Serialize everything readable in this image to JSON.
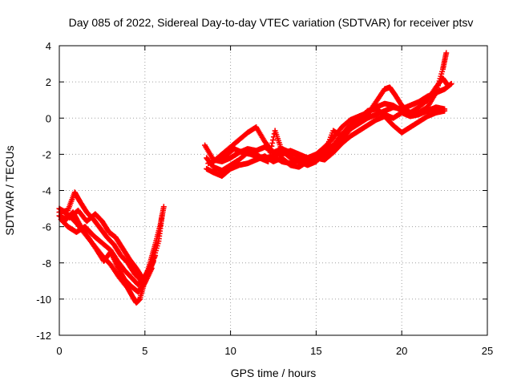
{
  "chart_data": {
    "type": "scatter",
    "title": "Day 085 of 2022, Sidereal Day-to-day VTEC variation (SDTVAR) for receiver ptsv",
    "xlabel": "GPS time / hours",
    "ylabel": "SDTVAR / TECUs",
    "xlim": [
      0,
      25
    ],
    "ylim": [
      -12,
      4
    ],
    "xticks": [
      0,
      5,
      10,
      15,
      20,
      25
    ],
    "yticks": [
      -12,
      -10,
      -8,
      -6,
      -4,
      -2,
      0,
      2,
      4
    ],
    "grid": true,
    "marker": "+",
    "color": "#ff0000",
    "series": [
      {
        "name": "trace-1",
        "points": [
          [
            0.0,
            -5.0
          ],
          [
            0.5,
            -5.3
          ],
          [
            1.0,
            -5.8
          ],
          [
            1.5,
            -6.4
          ],
          [
            2.0,
            -7.0
          ],
          [
            2.5,
            -7.6
          ],
          [
            3.0,
            -8.1
          ],
          [
            3.5,
            -8.8
          ],
          [
            4.0,
            -9.4
          ],
          [
            4.3,
            -9.9
          ],
          [
            4.5,
            -10.2
          ],
          [
            4.7,
            -10.0
          ],
          [
            5.0,
            -9.0
          ],
          [
            5.3,
            -8.0
          ],
          [
            5.6,
            -7.0
          ],
          [
            5.9,
            -5.9
          ],
          [
            6.1,
            -4.9
          ]
        ]
      },
      {
        "name": "trace-2",
        "points": [
          [
            0.0,
            -5.4
          ],
          [
            0.4,
            -5.6
          ],
          [
            0.8,
            -5.2
          ],
          [
            1.2,
            -5.9
          ],
          [
            1.7,
            -6.6
          ],
          [
            2.2,
            -7.3
          ],
          [
            2.6,
            -7.9
          ],
          [
            3.0,
            -7.4
          ],
          [
            3.4,
            -8.2
          ],
          [
            3.8,
            -8.9
          ],
          [
            4.2,
            -9.3
          ],
          [
            4.6,
            -9.6
          ],
          [
            5.0,
            -9.1
          ],
          [
            5.4,
            -8.3
          ]
        ]
      },
      {
        "name": "trace-3",
        "points": [
          [
            0.0,
            -5.2
          ],
          [
            0.5,
            -5.1
          ],
          [
            0.9,
            -4.1
          ],
          [
            1.2,
            -4.6
          ],
          [
            1.6,
            -5.2
          ],
          [
            2.0,
            -5.6
          ],
          [
            2.4,
            -6.1
          ],
          [
            2.8,
            -6.6
          ],
          [
            3.2,
            -7.0
          ],
          [
            3.6,
            -7.6
          ],
          [
            4.0,
            -8.0
          ],
          [
            4.4,
            -8.6
          ],
          [
            4.8,
            -9.0
          ],
          [
            5.2,
            -8.6
          ],
          [
            5.5,
            -7.9
          ]
        ]
      },
      {
        "name": "trace-4",
        "points": [
          [
            0.1,
            -5.6
          ],
          [
            0.5,
            -6.0
          ],
          [
            1.0,
            -6.3
          ],
          [
            1.5,
            -6.0
          ],
          [
            2.0,
            -6.5
          ],
          [
            2.5,
            -6.9
          ],
          [
            3.0,
            -7.3
          ],
          [
            3.4,
            -7.9
          ],
          [
            3.8,
            -8.4
          ],
          [
            4.2,
            -8.8
          ],
          [
            4.6,
            -9.2
          ],
          [
            5.0,
            -8.8
          ],
          [
            5.4,
            -8.1
          ],
          [
            5.8,
            -6.8
          ],
          [
            6.0,
            -5.4
          ]
        ]
      },
      {
        "name": "trace-5",
        "points": [
          [
            0.2,
            -5.1
          ],
          [
            0.6,
            -5.5
          ],
          [
            1.1,
            -5.1
          ],
          [
            1.6,
            -5.7
          ],
          [
            2.1,
            -5.3
          ],
          [
            2.5,
            -5.7
          ],
          [
            2.9,
            -6.3
          ],
          [
            3.3,
            -6.6
          ],
          [
            3.7,
            -7.2
          ],
          [
            4.1,
            -7.8
          ],
          [
            4.5,
            -8.3
          ],
          [
            4.9,
            -8.9
          ],
          [
            5.2,
            -8.4
          ],
          [
            5.6,
            -7.6
          ]
        ]
      },
      {
        "name": "trace-6",
        "points": [
          [
            8.5,
            -1.5
          ],
          [
            9.0,
            -2.3
          ],
          [
            9.5,
            -2.4
          ],
          [
            10.0,
            -2.2
          ],
          [
            10.5,
            -1.9
          ],
          [
            11.0,
            -1.7
          ],
          [
            11.5,
            -1.8
          ],
          [
            12.0,
            -1.6
          ],
          [
            12.5,
            -1.9
          ],
          [
            13.0,
            -1.7
          ],
          [
            13.5,
            -1.9
          ],
          [
            14.0,
            -2.1
          ],
          [
            14.5,
            -2.2
          ],
          [
            15.0,
            -2.0
          ],
          [
            15.5,
            -1.6
          ],
          [
            16.0,
            -1.1
          ],
          [
            16.5,
            -0.5
          ],
          [
            17.0,
            -0.1
          ],
          [
            17.5,
            0.1
          ],
          [
            18.0,
            0.3
          ],
          [
            18.5,
            0.6
          ],
          [
            19.0,
            0.8
          ],
          [
            19.5,
            0.7
          ],
          [
            20.0,
            0.4
          ],
          [
            20.5,
            0.2
          ],
          [
            21.0,
            0.3
          ],
          [
            21.5,
            0.6
          ],
          [
            22.0,
            1.4
          ],
          [
            22.4,
            2.7
          ],
          [
            22.6,
            3.6
          ]
        ]
      },
      {
        "name": "trace-7",
        "points": [
          [
            8.6,
            -2.2
          ],
          [
            9.0,
            -2.7
          ],
          [
            9.5,
            -2.9
          ],
          [
            10.0,
            -2.6
          ],
          [
            10.5,
            -2.3
          ],
          [
            11.0,
            -1.9
          ],
          [
            11.5,
            -2.0
          ],
          [
            12.0,
            -2.3
          ],
          [
            12.5,
            -2.1
          ],
          [
            13.0,
            -2.4
          ],
          [
            13.5,
            -2.5
          ],
          [
            14.0,
            -2.3
          ],
          [
            14.5,
            -2.5
          ],
          [
            15.0,
            -2.3
          ],
          [
            15.5,
            -2.0
          ],
          [
            16.0,
            -1.7
          ],
          [
            16.5,
            -1.2
          ],
          [
            17.0,
            -0.6
          ],
          [
            17.5,
            -0.3
          ],
          [
            18.0,
            0.0
          ],
          [
            18.5,
            0.2
          ],
          [
            19.0,
            0.4
          ],
          [
            19.5,
            0.6
          ],
          [
            20.0,
            0.5
          ],
          [
            20.5,
            0.7
          ],
          [
            21.0,
            0.9
          ],
          [
            21.5,
            1.2
          ],
          [
            22.0,
            1.4
          ],
          [
            22.5,
            1.6
          ],
          [
            22.9,
            1.9
          ]
        ]
      },
      {
        "name": "trace-8",
        "points": [
          [
            8.6,
            -2.8
          ],
          [
            9.0,
            -3.0
          ],
          [
            9.5,
            -3.2
          ],
          [
            10.0,
            -2.8
          ],
          [
            10.5,
            -2.6
          ],
          [
            11.0,
            -2.5
          ],
          [
            11.5,
            -2.3
          ],
          [
            12.0,
            -2.1
          ],
          [
            12.5,
            -2.4
          ],
          [
            13.0,
            -2.2
          ],
          [
            13.5,
            -2.6
          ],
          [
            14.0,
            -2.7
          ],
          [
            14.5,
            -2.4
          ],
          [
            15.0,
            -2.2
          ],
          [
            15.5,
            -2.3
          ],
          [
            16.0,
            -1.9
          ],
          [
            16.5,
            -1.4
          ],
          [
            17.0,
            -1.0
          ],
          [
            17.5,
            -0.7
          ],
          [
            18.0,
            -0.4
          ],
          [
            18.5,
            -0.1
          ],
          [
            19.0,
            0.1
          ],
          [
            19.5,
            -0.4
          ],
          [
            20.0,
            -0.8
          ],
          [
            20.5,
            -0.5
          ],
          [
            21.0,
            -0.2
          ],
          [
            21.5,
            0.1
          ],
          [
            22.0,
            0.3
          ],
          [
            22.5,
            0.4
          ]
        ]
      },
      {
        "name": "trace-9",
        "points": [
          [
            9.0,
            -2.4
          ],
          [
            9.5,
            -2.0
          ],
          [
            10.0,
            -1.6
          ],
          [
            10.5,
            -1.2
          ],
          [
            11.0,
            -0.8
          ],
          [
            11.5,
            -0.5
          ],
          [
            12.0,
            -1.3
          ],
          [
            12.5,
            -1.9
          ],
          [
            13.0,
            -2.0
          ],
          [
            13.5,
            -1.8
          ],
          [
            14.0,
            -2.0
          ],
          [
            14.5,
            -2.2
          ],
          [
            15.0,
            -2.1
          ],
          [
            15.5,
            -1.8
          ],
          [
            16.0,
            -1.5
          ],
          [
            16.5,
            -0.9
          ],
          [
            17.0,
            -0.4
          ],
          [
            17.5,
            -0.2
          ],
          [
            18.0,
            0.2
          ],
          [
            18.5,
            0.9
          ],
          [
            19.0,
            1.6
          ],
          [
            19.3,
            1.7
          ],
          [
            19.6,
            1.3
          ],
          [
            20.0,
            0.7
          ],
          [
            20.5,
            0.3
          ],
          [
            21.0,
            0.6
          ],
          [
            21.5,
            1.0
          ],
          [
            22.0,
            1.7
          ],
          [
            22.4,
            2.2
          ],
          [
            22.7,
            1.8
          ]
        ]
      },
      {
        "name": "trace-10",
        "points": [
          [
            8.7,
            -2.5
          ],
          [
            9.2,
            -2.3
          ],
          [
            9.7,
            -2.1
          ],
          [
            10.2,
            -1.7
          ],
          [
            10.7,
            -1.9
          ],
          [
            11.2,
            -2.0
          ],
          [
            11.7,
            -2.2
          ],
          [
            12.2,
            -2.4
          ],
          [
            12.6,
            -0.7
          ],
          [
            13.0,
            -1.8
          ],
          [
            13.5,
            -2.2
          ],
          [
            14.0,
            -2.4
          ],
          [
            14.5,
            -2.6
          ],
          [
            15.0,
            -2.4
          ],
          [
            15.5,
            -1.9
          ],
          [
            16.0,
            -0.7
          ],
          [
            16.5,
            -1.0
          ],
          [
            17.0,
            -0.5
          ],
          [
            17.5,
            -0.1
          ],
          [
            18.0,
            0.4
          ],
          [
            18.5,
            0.5
          ],
          [
            19.0,
            0.2
          ],
          [
            19.5,
            0.0
          ],
          [
            20.0,
            0.3
          ],
          [
            20.5,
            0.1
          ],
          [
            21.0,
            0.2
          ],
          [
            21.5,
            0.4
          ],
          [
            22.0,
            0.6
          ],
          [
            22.5,
            0.5
          ]
        ]
      }
    ]
  }
}
